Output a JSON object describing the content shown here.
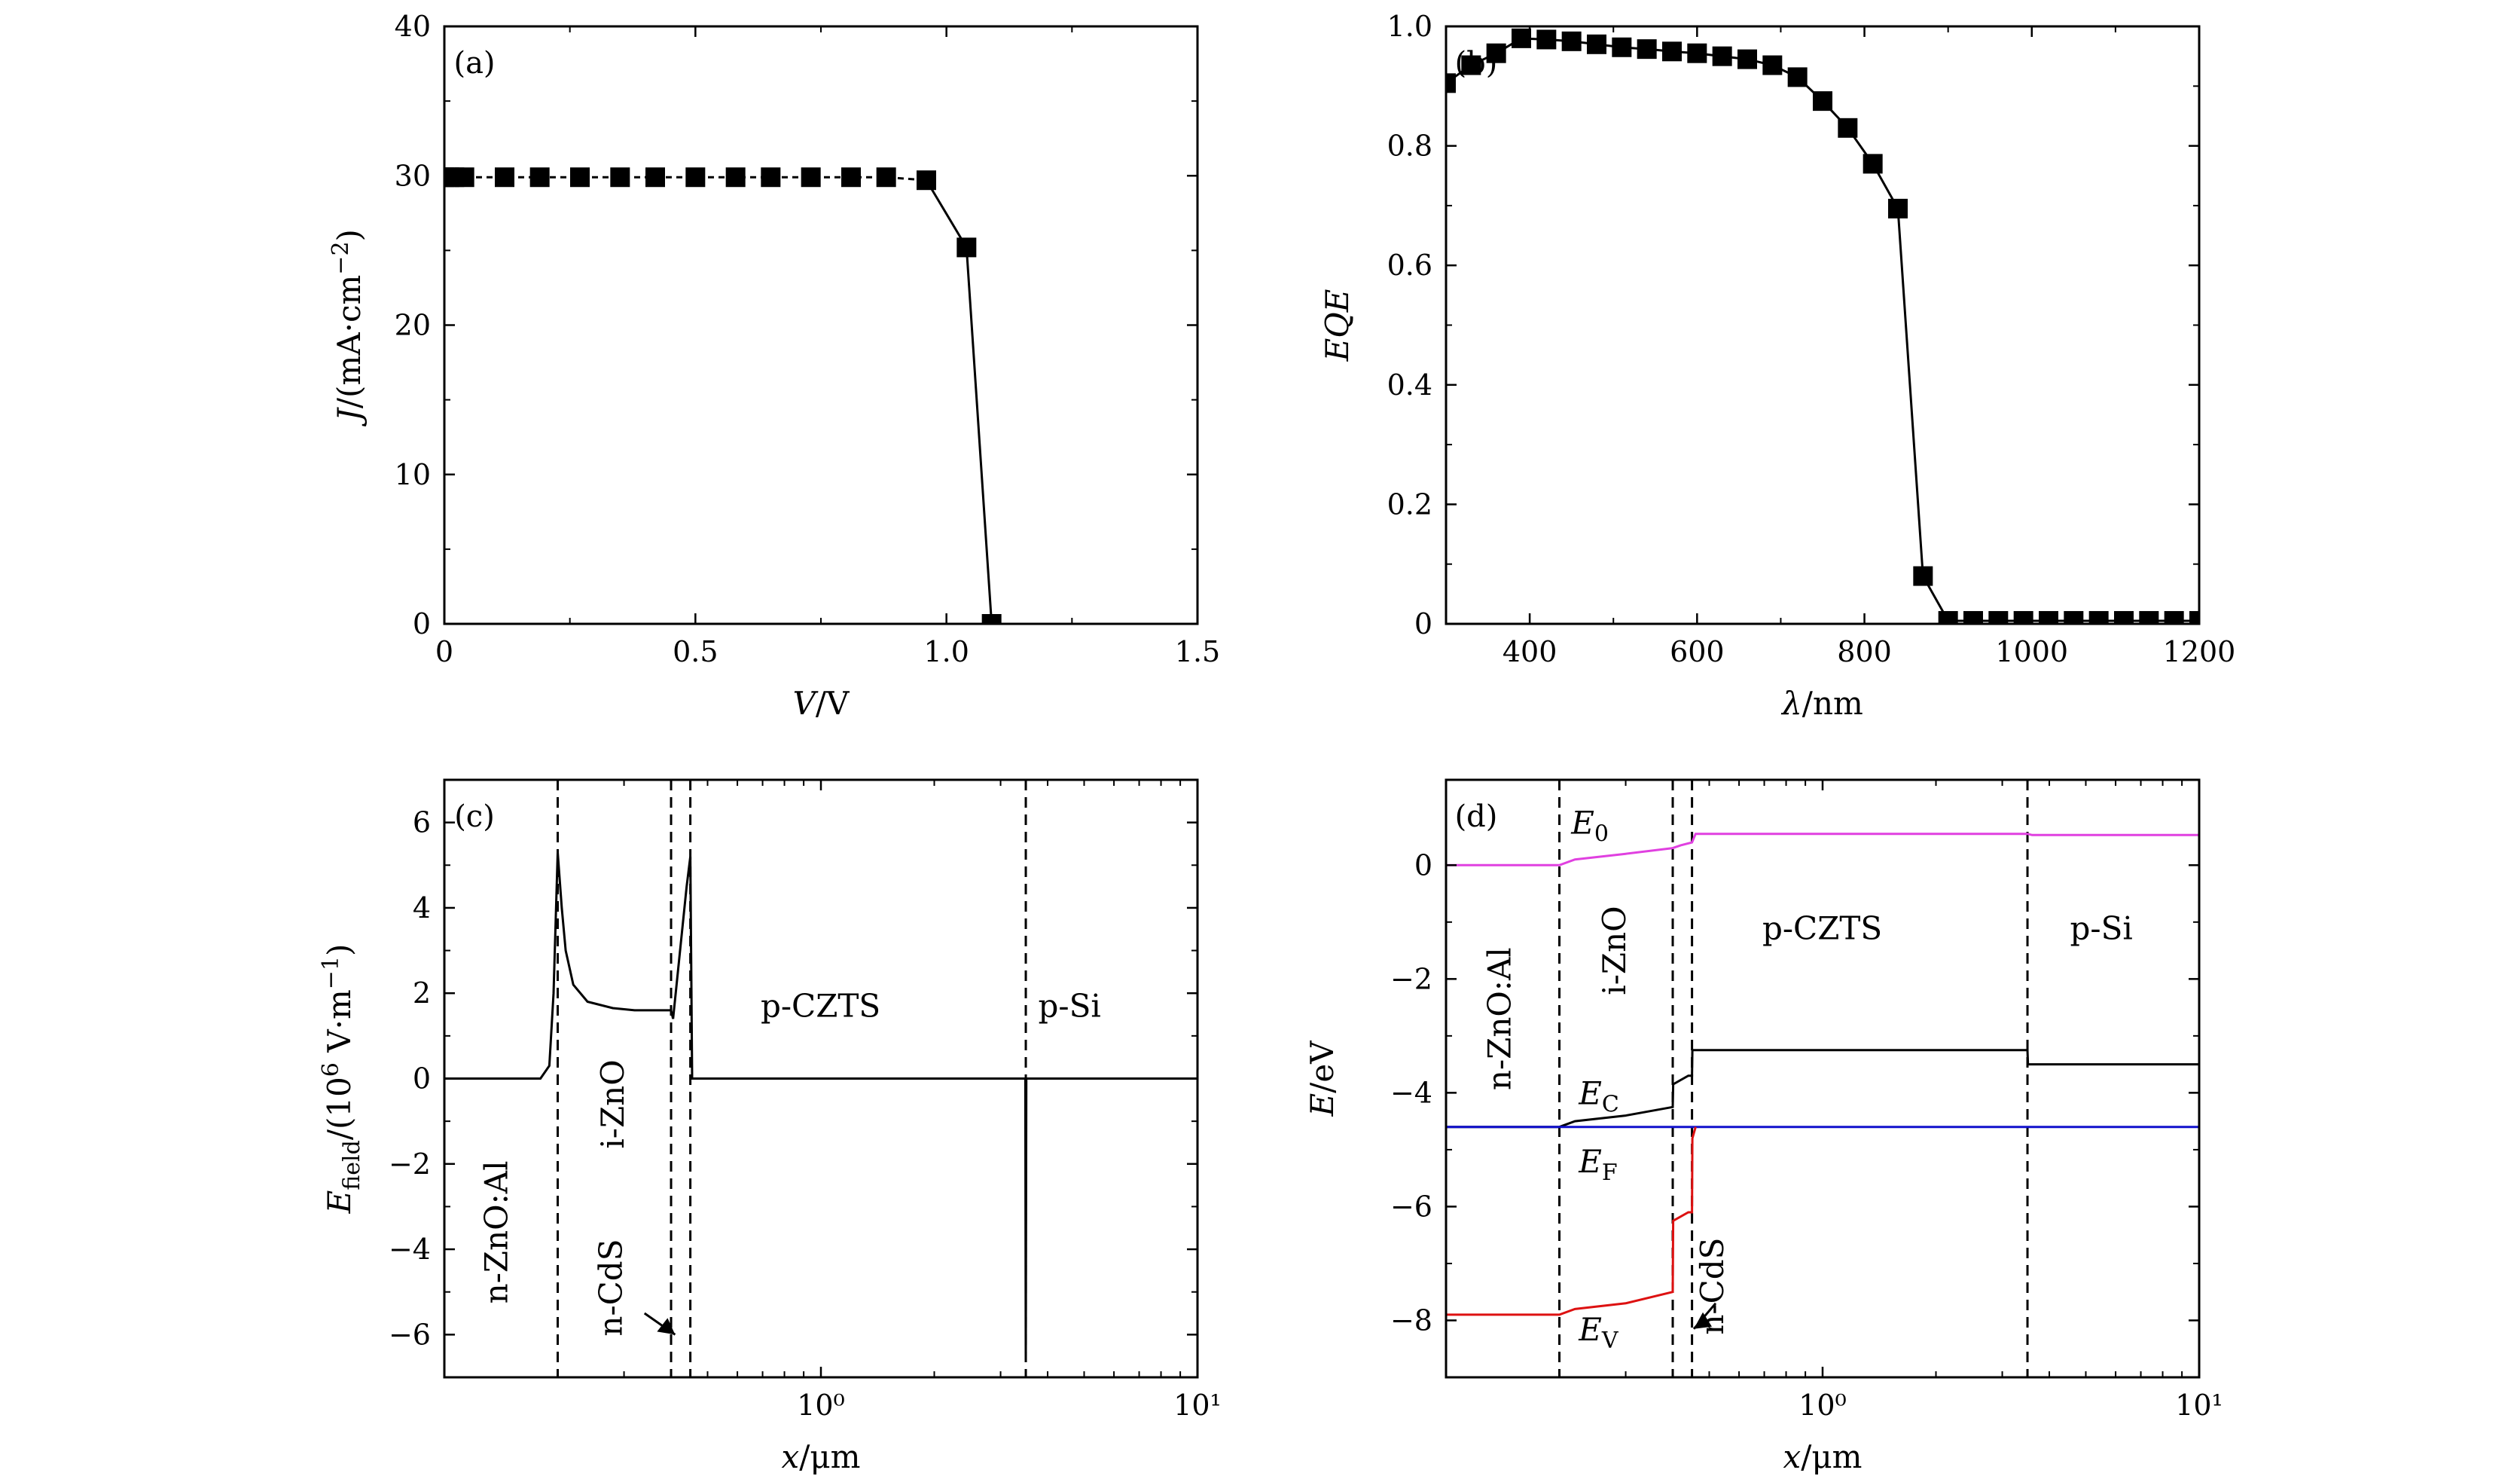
{
  "chart_data": [
    {
      "type": "scatter",
      "panel_label": "(a)",
      "xlabel": "V/V",
      "ylabel": "J/(mA·cm⁻²)",
      "xlim": [
        0,
        1.5
      ],
      "ylim": [
        0,
        40
      ],
      "xticks": [
        "0",
        "0.5",
        "1.0",
        "1.5"
      ],
      "yticks": [
        "0",
        "10",
        "20",
        "30",
        "40"
      ],
      "series": [
        {
          "x": [
            0,
            0.01,
            0.02,
            0.04,
            0.12,
            0.19,
            0.27,
            0.35,
            0.42,
            0.5,
            0.58,
            0.65,
            0.73,
            0.81,
            0.88,
            0.96,
            1.04,
            1.09
          ],
          "y": [
            29.9,
            29.9,
            29.9,
            29.9,
            29.9,
            29.9,
            29.9,
            29.9,
            29.9,
            29.9,
            29.9,
            29.9,
            29.9,
            29.9,
            29.9,
            29.7,
            25.2,
            0
          ]
        }
      ]
    },
    {
      "type": "scatter",
      "panel_label": "(b)",
      "xlabel": "λ/nm",
      "ylabel": "EQE",
      "xlim": [
        300,
        1200
      ],
      "ylim": [
        0,
        1.0
      ],
      "xticks": [
        "400",
        "600",
        "800",
        "1000",
        "1200"
      ],
      "yticks": [
        "0",
        "0.2",
        "0.4",
        "0.6",
        "0.8",
        "1.0"
      ],
      "series": [
        {
          "x": [
            300,
            330,
            360,
            390,
            420,
            450,
            480,
            510,
            540,
            570,
            600,
            630,
            660,
            690,
            720,
            750,
            780,
            810,
            840,
            870,
            900,
            930,
            960,
            990,
            1020,
            1050,
            1080,
            1110,
            1140,
            1170,
            1200
          ],
          "y": [
            0.905,
            0.935,
            0.955,
            0.98,
            0.978,
            0.975,
            0.97,
            0.965,
            0.962,
            0.958,
            0.955,
            0.95,
            0.945,
            0.935,
            0.915,
            0.875,
            0.83,
            0.77,
            0.695,
            0.08,
            0.005,
            0.005,
            0.005,
            0.005,
            0.005,
            0.005,
            0.005,
            0.005,
            0.005,
            0.005,
            0.005
          ]
        }
      ]
    },
    {
      "type": "line",
      "panel_label": "(c)",
      "xlabel": "x/μm",
      "ylabel": "E_field/(10⁶ V·m⁻¹)",
      "xscale": "log",
      "xlim": [
        0.1,
        10
      ],
      "ylim": [
        -7,
        7
      ],
      "xticks": [
        "10⁰",
        "10¹"
      ],
      "yticks": [
        "−6",
        "−4",
        "−2",
        "0",
        "2",
        "4",
        "6"
      ],
      "boundaries": [
        0.2,
        0.4,
        0.45,
        3.5
      ],
      "region_labels": [
        "n-ZnO:Al",
        "i-ZnO",
        "n-CdS",
        "p-CZTS",
        "p-Si"
      ],
      "series": [
        {
          "x": [
            0.1,
            0.18,
            0.19,
            0.195,
            0.2,
            0.205,
            0.21,
            0.22,
            0.24,
            0.28,
            0.32,
            0.4,
            0.405,
            0.44,
            0.45,
            0.455,
            0.5,
            1,
            2,
            3.49,
            3.5,
            3.51,
            5,
            10
          ],
          "y": [
            0,
            0,
            0.3,
            2.0,
            5.3,
            4.0,
            3.0,
            2.2,
            1.8,
            1.65,
            1.6,
            1.6,
            1.4,
            4.5,
            5.2,
            0,
            0,
            0,
            0,
            0,
            -6.6,
            0,
            0,
            0
          ]
        }
      ]
    },
    {
      "type": "line",
      "panel_label": "(d)",
      "xlabel": "x/μm",
      "ylabel": "E/eV",
      "xscale": "log",
      "xlim": [
        0.1,
        10
      ],
      "ylim": [
        -9,
        1.5
      ],
      "xticks": [
        "10⁰",
        "10¹"
      ],
      "yticks": [
        "−8",
        "−6",
        "−4",
        "−2",
        "0"
      ],
      "boundaries": [
        0.2,
        0.4,
        0.45,
        3.5
      ],
      "region_labels": [
        "n-ZnO:Al",
        "i-ZnO",
        "p-CZTS",
        "p-Si",
        "n-CdS"
      ],
      "series": [
        {
          "name": "E0",
          "color": "#e040e0",
          "x": [
            0.1,
            0.2,
            0.22,
            0.3,
            0.4,
            0.42,
            0.45,
            0.46,
            3.5,
            3.6,
            10
          ],
          "y": [
            0,
            0,
            0.1,
            0.2,
            0.3,
            0.35,
            0.4,
            0.55,
            0.55,
            0.53,
            0.53
          ]
        },
        {
          "name": "EC",
          "color": "#000000",
          "x": [
            0.1,
            0.2,
            0.22,
            0.3,
            0.4,
            0.401,
            0.44,
            0.45,
            0.451,
            3.5,
            3.51,
            10
          ],
          "y": [
            -4.6,
            -4.6,
            -4.5,
            -4.4,
            -4.25,
            -3.85,
            -3.7,
            -3.7,
            -3.25,
            -3.25,
            -3.5,
            -3.5
          ]
        },
        {
          "name": "EF",
          "color": "#1010cc",
          "x": [
            0.1,
            10
          ],
          "y": [
            -4.6,
            -4.6
          ]
        },
        {
          "name": "EV",
          "color": "#dd1111",
          "x": [
            0.1,
            0.2,
            0.22,
            0.3,
            0.4,
            0.401,
            0.44,
            0.45,
            0.451,
            0.46
          ],
          "y": [
            -7.9,
            -7.9,
            -7.8,
            -7.7,
            -7.5,
            -6.25,
            -6.1,
            -6.1,
            -4.8,
            -4.6
          ]
        }
      ]
    }
  ],
  "labels": {
    "e0": "E",
    "e0_sub": "0",
    "ec": "E",
    "ec_sub": "C",
    "ef": "E",
    "ef_sub": "F",
    "ev": "E",
    "ev_sub": "V"
  }
}
